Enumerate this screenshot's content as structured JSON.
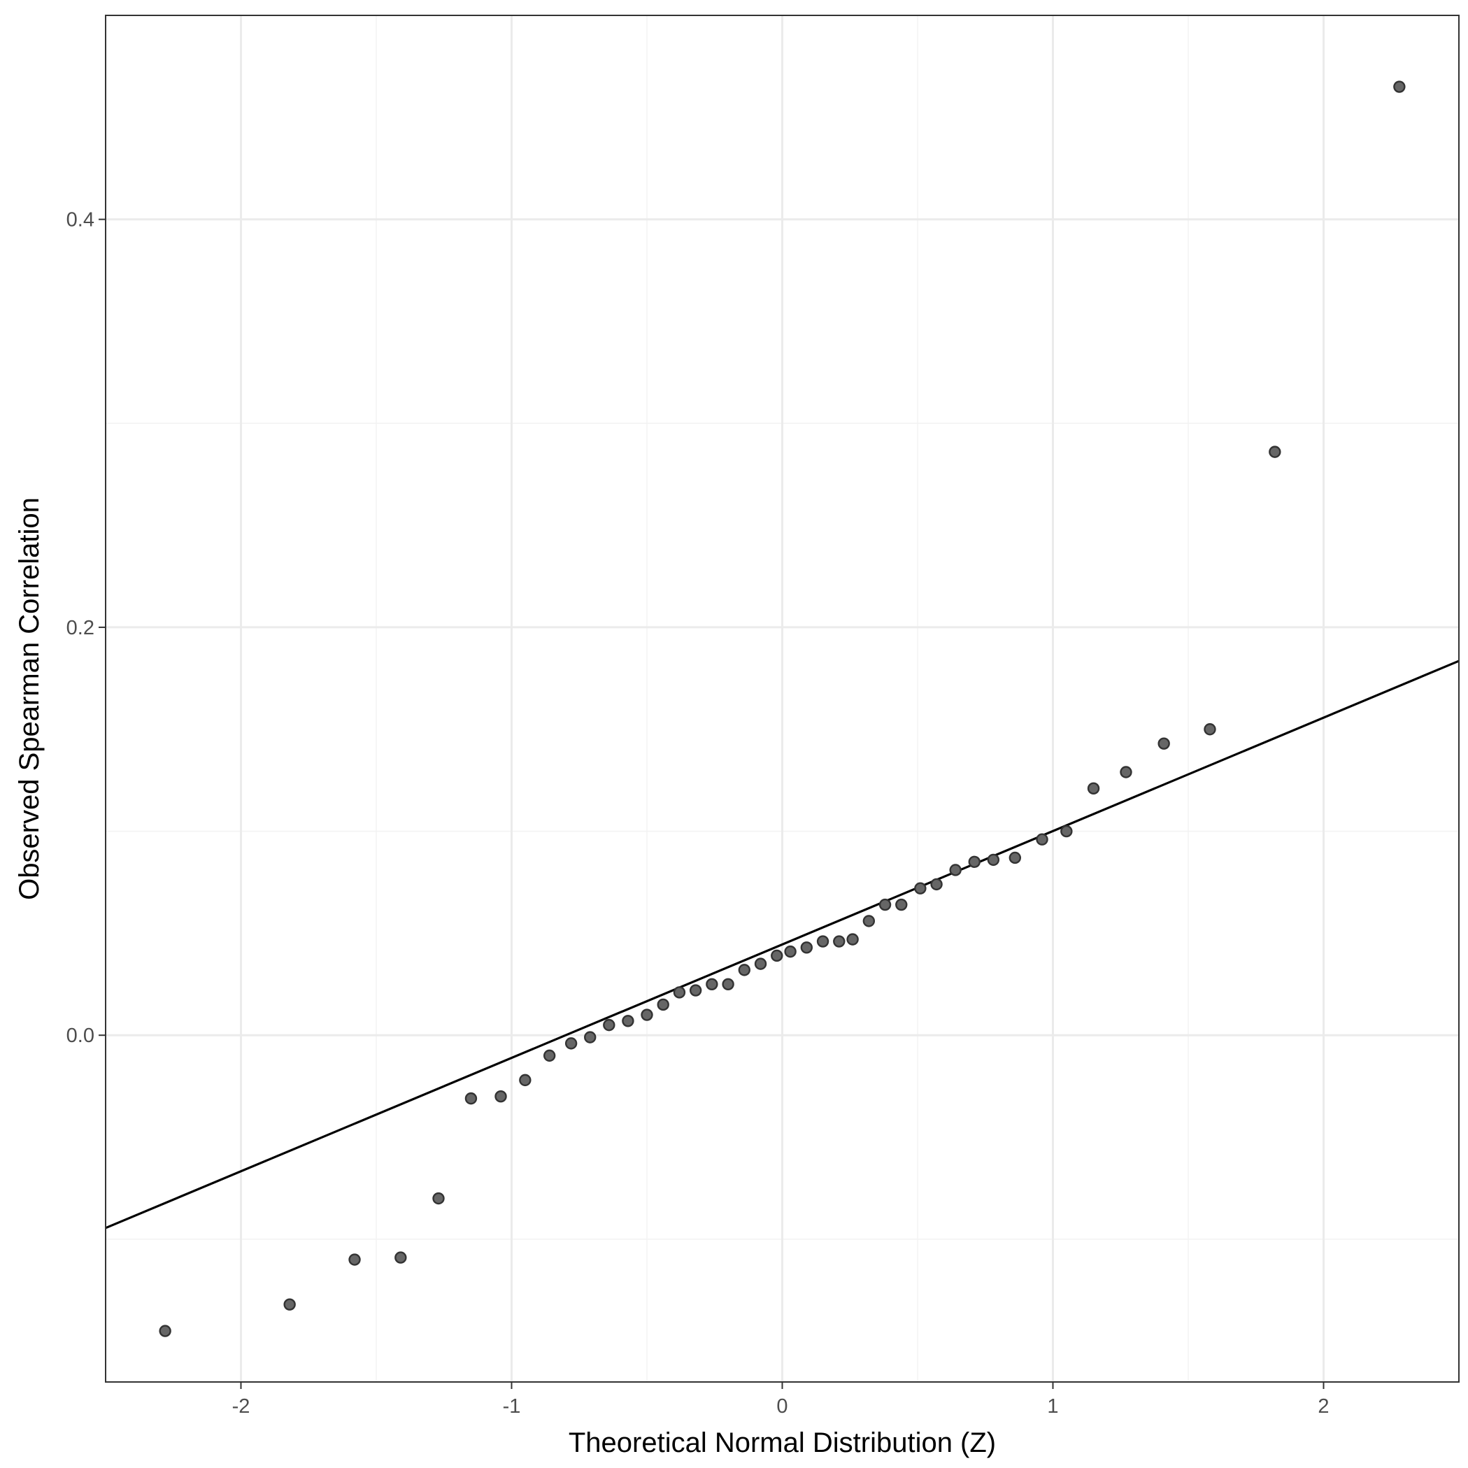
{
  "chart_data": {
    "type": "scatter",
    "title": "",
    "xlabel": "Theoretical Normal Distribution (Z)",
    "ylabel": "Observed Spearman Correlation",
    "xlim": [
      -2.5,
      2.5
    ],
    "ylim": [
      -0.17,
      0.5
    ],
    "x_major_ticks": [
      -2,
      -1,
      0,
      1,
      2
    ],
    "x_tick_labels": [
      "-2",
      "-1",
      "0",
      "1",
      "2"
    ],
    "x_minor_ticks": [
      -1.5,
      -0.5,
      0.5,
      1.5
    ],
    "y_major_ticks": [
      0.0,
      0.2,
      0.4
    ],
    "y_tick_labels": [
      "0.0",
      "0.2",
      "0.4"
    ],
    "y_minor_ticks": [
      -0.1,
      0.1,
      0.3
    ],
    "grid": true,
    "legend": "none",
    "colors": {
      "point_fill": "#666666",
      "point_stroke": "#333333",
      "line": "#000000"
    },
    "reference_line": {
      "intercept": 0.0445,
      "slope": 0.0556
    },
    "points": [
      {
        "x": -2.28,
        "y": -0.145
      },
      {
        "x": -1.82,
        "y": -0.132
      },
      {
        "x": -1.58,
        "y": -0.11
      },
      {
        "x": -1.41,
        "y": -0.109
      },
      {
        "x": -1.27,
        "y": -0.08
      },
      {
        "x": -1.15,
        "y": -0.031
      },
      {
        "x": -1.04,
        "y": -0.03
      },
      {
        "x": -0.95,
        "y": -0.022
      },
      {
        "x": -0.86,
        "y": -0.01
      },
      {
        "x": -0.78,
        "y": -0.004
      },
      {
        "x": -0.71,
        "y": -0.001
      },
      {
        "x": -0.64,
        "y": 0.005
      },
      {
        "x": -0.57,
        "y": 0.007
      },
      {
        "x": -0.5,
        "y": 0.01
      },
      {
        "x": -0.44,
        "y": 0.015
      },
      {
        "x": -0.38,
        "y": 0.021
      },
      {
        "x": -0.32,
        "y": 0.022
      },
      {
        "x": -0.26,
        "y": 0.025
      },
      {
        "x": -0.2,
        "y": 0.025
      },
      {
        "x": -0.14,
        "y": 0.032
      },
      {
        "x": -0.08,
        "y": 0.035
      },
      {
        "x": -0.02,
        "y": 0.039
      },
      {
        "x": 0.03,
        "y": 0.041
      },
      {
        "x": 0.09,
        "y": 0.043
      },
      {
        "x": 0.15,
        "y": 0.046
      },
      {
        "x": 0.21,
        "y": 0.046
      },
      {
        "x": 0.26,
        "y": 0.047
      },
      {
        "x": 0.32,
        "y": 0.056
      },
      {
        "x": 0.38,
        "y": 0.064
      },
      {
        "x": 0.44,
        "y": 0.064
      },
      {
        "x": 0.51,
        "y": 0.072
      },
      {
        "x": 0.57,
        "y": 0.074
      },
      {
        "x": 0.64,
        "y": 0.081
      },
      {
        "x": 0.71,
        "y": 0.085
      },
      {
        "x": 0.78,
        "y": 0.086
      },
      {
        "x": 0.86,
        "y": 0.087
      },
      {
        "x": 0.96,
        "y": 0.096
      },
      {
        "x": 1.05,
        "y": 0.1
      },
      {
        "x": 1.15,
        "y": 0.121
      },
      {
        "x": 1.27,
        "y": 0.129
      },
      {
        "x": 1.41,
        "y": 0.143
      },
      {
        "x": 1.58,
        "y": 0.15
      },
      {
        "x": 1.82,
        "y": 0.286
      },
      {
        "x": 2.28,
        "y": 0.465
      }
    ]
  }
}
